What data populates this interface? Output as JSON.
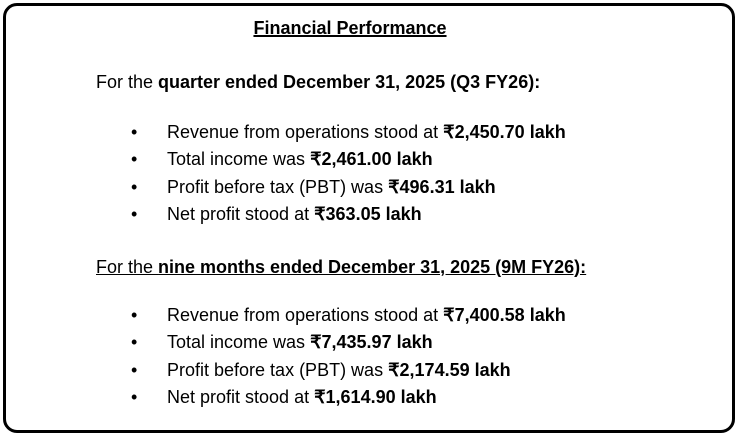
{
  "title": "Financial Performance",
  "sections": [
    {
      "heading_prefix": "For the ",
      "heading_bold": "quarter ended December 31, 2025 (Q3 FY26):",
      "underlined": false,
      "items": [
        {
          "text": "Revenue from operations stood at ",
          "value": "₹2,450.70 lakh"
        },
        {
          "text": "Total income was ",
          "value": "₹2,461.00 lakh"
        },
        {
          "text": "Profit before tax (PBT) was ",
          "value": "₹496.31 lakh"
        },
        {
          "text": "Net profit stood at ",
          "value": "₹363.05 lakh"
        }
      ]
    },
    {
      "heading_prefix": "For the ",
      "heading_bold": "nine months ended December 31, 2025 (9M FY26):",
      "underlined": true,
      "items": [
        {
          "text": "Revenue from operations stood at ",
          "value": "₹7,400.58 lakh"
        },
        {
          "text": "Total income was ",
          "value": "₹7,435.97 lakh"
        },
        {
          "text": "Profit before tax (PBT) was ",
          "value": "₹2,174.59 lakh"
        },
        {
          "text": "Net profit stood at ",
          "value": "₹1,614.90 lakh"
        }
      ]
    }
  ],
  "bullet_glyph": "•"
}
